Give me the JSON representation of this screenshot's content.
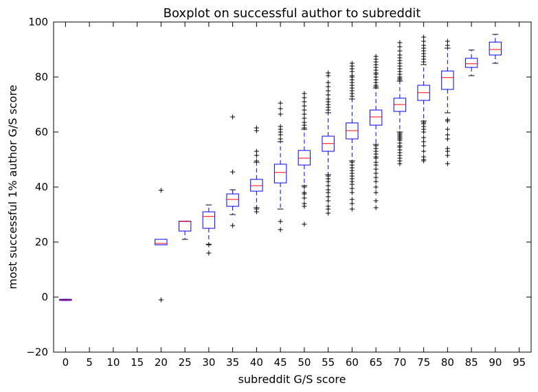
{
  "chart_data": {
    "type": "boxplot",
    "title": "Boxplot on successful author to subreddit",
    "xlabel": "subreddit G/S score",
    "ylabel": "most successful 1% author G/S score",
    "ylim": [
      -20,
      100
    ],
    "yticks": [
      -20,
      0,
      20,
      40,
      60,
      80,
      100
    ],
    "categories": [
      "0",
      "5",
      "10",
      "15",
      "20",
      "25",
      "30",
      "35",
      "40",
      "45",
      "50",
      "55",
      "60",
      "65",
      "70",
      "75",
      "80",
      "85",
      "90",
      "95"
    ],
    "boxes": [
      {
        "x": "0",
        "q1": -1.2,
        "median": -1,
        "q3": -0.8,
        "whislo": -1.2,
        "whishi": -0.8,
        "fliers": []
      },
      {
        "x": "5",
        "empty": true
      },
      {
        "x": "10",
        "empty": true
      },
      {
        "x": "15",
        "empty": true
      },
      {
        "x": "20",
        "q1": 19,
        "median": 19.5,
        "q3": 21,
        "whislo": 19,
        "whishi": 21,
        "fliers": [
          38.8,
          -1
        ]
      },
      {
        "x": "25",
        "q1": 24,
        "median": 27.5,
        "q3": 27.6,
        "whislo": 21,
        "whishi": 27.6,
        "fliers": []
      },
      {
        "x": "30",
        "q1": 25,
        "median": 29.3,
        "q3": 31,
        "whislo": 19.2,
        "whishi": 33.5,
        "fliers": [
          16,
          19
        ]
      },
      {
        "x": "35",
        "q1": 33,
        "median": 35.5,
        "q3": 37.5,
        "whislo": 30,
        "whishi": 39,
        "fliers": [
          65.5,
          45.5,
          26
        ]
      },
      {
        "x": "40",
        "q1": 38.5,
        "median": 40.5,
        "q3": 42.8,
        "whislo": 32.5,
        "whishi": 49,
        "fliers": [
          61.5,
          60.5,
          53,
          51.5,
          49.5,
          32,
          31
        ]
      },
      {
        "x": "45",
        "q1": 41.5,
        "median": 45.3,
        "q3": 48.3,
        "whislo": 32,
        "whishi": 56.5,
        "fliers": [
          70.5,
          68.5,
          66.5,
          62,
          61,
          60,
          59,
          57.5,
          27.5,
          24.5
        ]
      },
      {
        "x": "50",
        "q1": 48,
        "median": 50.5,
        "q3": 53.3,
        "whislo": 40.5,
        "whishi": 61,
        "fliers": [
          74,
          72.5,
          71,
          69.5,
          68,
          66.5,
          65,
          63.5,
          62.5,
          61.5,
          40,
          38,
          37.5,
          36,
          34,
          33,
          26.5
        ]
      },
      {
        "x": "55",
        "q1": 53,
        "median": 55.8,
        "q3": 58.5,
        "whislo": 44.5,
        "whishi": 67,
        "fliers": [
          81.5,
          80.5,
          78,
          76.5,
          75,
          73.5,
          72,
          71,
          70,
          69,
          68,
          44,
          43,
          42,
          40.5,
          39,
          38,
          36.5,
          35,
          33,
          32,
          30.5
        ]
      },
      {
        "x": "60",
        "q1": 57.5,
        "median": 60.5,
        "q3": 63.3,
        "whislo": 49.5,
        "whishi": 72,
        "fliers": [
          85,
          84,
          83,
          82,
          80.5,
          80,
          79,
          78,
          77,
          76,
          75,
          74,
          73,
          49,
          48,
          47,
          46,
          45,
          44,
          43,
          42,
          41,
          39.5,
          38,
          35.5,
          34,
          32
        ]
      },
      {
        "x": "65",
        "q1": 62.5,
        "median": 65.5,
        "q3": 68,
        "whislo": 55.5,
        "whishi": 76,
        "fliers": [
          87.5,
          86.5,
          85.5,
          84.5,
          83.5,
          82.5,
          81.5,
          81,
          80,
          79,
          78,
          77,
          76.5,
          55,
          54,
          53,
          52,
          51,
          50.5,
          49,
          48,
          46.5,
          45,
          43.5,
          42,
          40,
          38,
          35,
          32.5
        ]
      },
      {
        "x": "70",
        "q1": 67.5,
        "median": 70,
        "q3": 72.3,
        "whislo": 60,
        "whishi": 78.5,
        "fliers": [
          92.5,
          91,
          89.5,
          88,
          87,
          86,
          85,
          84,
          83,
          82,
          81,
          80,
          79.5,
          79,
          59.5,
          59,
          58.5,
          58,
          57.5,
          57,
          56,
          55,
          54.5,
          53.5,
          52.5,
          51.5,
          50.5,
          49.5,
          48.5
        ]
      },
      {
        "x": "75",
        "q1": 71.5,
        "median": 74.3,
        "q3": 77,
        "whislo": 64,
        "whishi": 84.5,
        "fliers": [
          94.5,
          93,
          91.5,
          90.5,
          89.5,
          88.5,
          87.5,
          86.5,
          85.5,
          63.5,
          63,
          62,
          61,
          60,
          58,
          56.5,
          55,
          53,
          51,
          50,
          49.5
        ]
      },
      {
        "x": "80",
        "q1": 75.5,
        "median": 79.8,
        "q3": 82.2,
        "whislo": 67,
        "whishi": 90.5,
        "fliers": [
          93,
          91.5,
          64.5,
          64,
          61,
          59,
          57.5,
          54,
          53,
          51.5,
          48.5
        ]
      },
      {
        "x": "85",
        "q1": 83.5,
        "median": 84.8,
        "q3": 86.8,
        "whislo": 80.5,
        "whishi": 89.8,
        "fliers": []
      },
      {
        "x": "90",
        "q1": 88,
        "median": 90,
        "q3": 92.7,
        "whislo": 85,
        "whishi": 95.5,
        "fliers": []
      },
      {
        "x": "95",
        "empty": true
      }
    ],
    "colors": {
      "box": "#0000ff",
      "median": "#ff0000",
      "whisker": "#0000ff",
      "cap": "#000000",
      "flier": "#000000",
      "axis": "#000000"
    },
    "grid": false,
    "legend": "none"
  }
}
